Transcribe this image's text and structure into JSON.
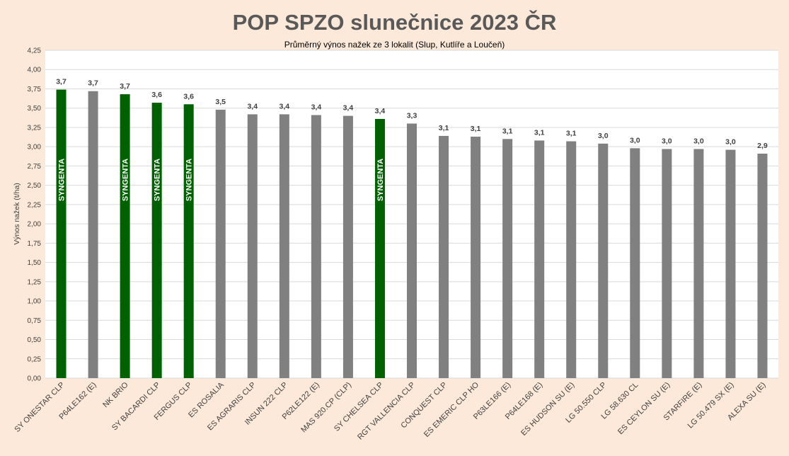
{
  "chart_data": {
    "type": "bar",
    "title": "POP SPZO slunečnice 2023 ČR",
    "subtitle": "Průměrný výnos nažek ze 3 lokalit (Slup, Kutlíře a Loučeň)",
    "ylabel": "Výnos nažek (t/ha)",
    "xlabel": "",
    "ylim": [
      0,
      4.25
    ],
    "yticks": [
      "0,00",
      "0,25",
      "0,50",
      "0,75",
      "1,00",
      "1,25",
      "1,50",
      "1,75",
      "2,00",
      "2,25",
      "2,50",
      "2,75",
      "3,00",
      "3,25",
      "3,50",
      "3,75",
      "4,00",
      "4,25"
    ],
    "grid": true,
    "categories": [
      "SY ONESTAR CLP",
      "P64LE162 (E)",
      "NK BRIO",
      "SY BACARDI CLP",
      "FERGUS CLP",
      "ES ROSALIA",
      "ES AGRARIS CLP",
      "INSUN 222 CLP",
      "P62LE122 (E)",
      "MAS 920.CP (CLP)",
      "SY CHELSEA CLP",
      "RGT VALLENCIA CLP",
      "CONQUEST CLP",
      "ES EMERIC CLP HO",
      "P63LE166 (E)",
      "P64LE168 (E)",
      "ES HUDSON SU (E)",
      "LG 50.550 CLP",
      "LG 58.630 CL",
      "ES CEYLON SU (E)",
      "STARFIRE (E)",
      "LG 50.479 SX (E)",
      "ALEXA SU (E)"
    ],
    "values": [
      3.74,
      3.72,
      3.68,
      3.57,
      3.55,
      3.48,
      3.42,
      3.42,
      3.41,
      3.4,
      3.36,
      3.3,
      3.14,
      3.13,
      3.1,
      3.08,
      3.07,
      3.04,
      2.98,
      2.97,
      2.97,
      2.96,
      2.91
    ],
    "data_labels": [
      "3,7",
      "3,7",
      "3,7",
      "3,6",
      "3,6",
      "3,5",
      "3,4",
      "3,4",
      "3,4",
      "3,4",
      "3,4",
      "3,3",
      "3,1",
      "3,1",
      "3,1",
      "3,1",
      "3,1",
      "3,0",
      "3,0",
      "3,0",
      "3,0",
      "3,0",
      "2,9"
    ],
    "bar_brand_labels": [
      "SYNGENTA",
      "",
      "SYNGENTA",
      "SYNGENTA",
      "SYNGENTA",
      "",
      "",
      "",
      "",
      "",
      "SYNGENTA",
      "",
      "",
      "",
      "",
      "",
      "",
      "",
      "",
      "",
      "",
      "",
      ""
    ],
    "colors": {
      "highlight": "#006100",
      "default": "#808080",
      "grid": "#d9d9d9",
      "plot_bg": "#ffffff"
    }
  }
}
